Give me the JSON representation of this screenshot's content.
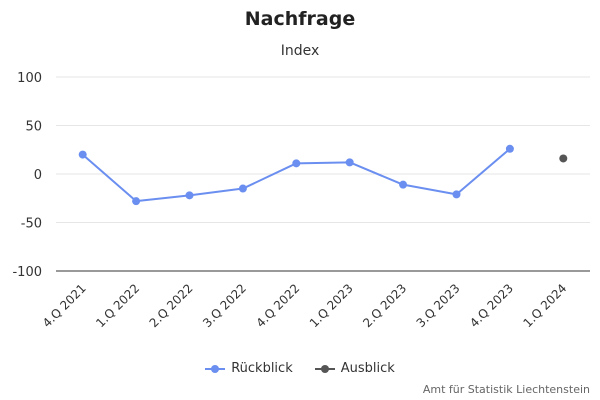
{
  "chart_data": {
    "type": "line",
    "title": "Nachfrage",
    "subtitle": "Index",
    "categories": [
      "4.Q 2021",
      "1.Q 2022",
      "2.Q 2022",
      "3.Q 2022",
      "4.Q 2022",
      "1.Q 2023",
      "2.Q 2023",
      "3.Q 2023",
      "4.Q 2023",
      "1.Q 2024"
    ],
    "ylim": [
      -100,
      100
    ],
    "yticks": [
      100,
      50,
      0,
      -50,
      -100
    ],
    "grid": true,
    "legend_position": "bottom-center",
    "series": [
      {
        "name": "Rückblick",
        "color": "#6b8ff0",
        "values": [
          20,
          -28,
          -22,
          -15,
          11,
          12,
          -11,
          -21,
          26,
          null
        ]
      },
      {
        "name": "Ausblick",
        "color": "#555555",
        "values": [
          null,
          null,
          null,
          null,
          null,
          null,
          null,
          null,
          null,
          16
        ]
      }
    ]
  },
  "credits": "Amt für Statistik Liechtenstein"
}
